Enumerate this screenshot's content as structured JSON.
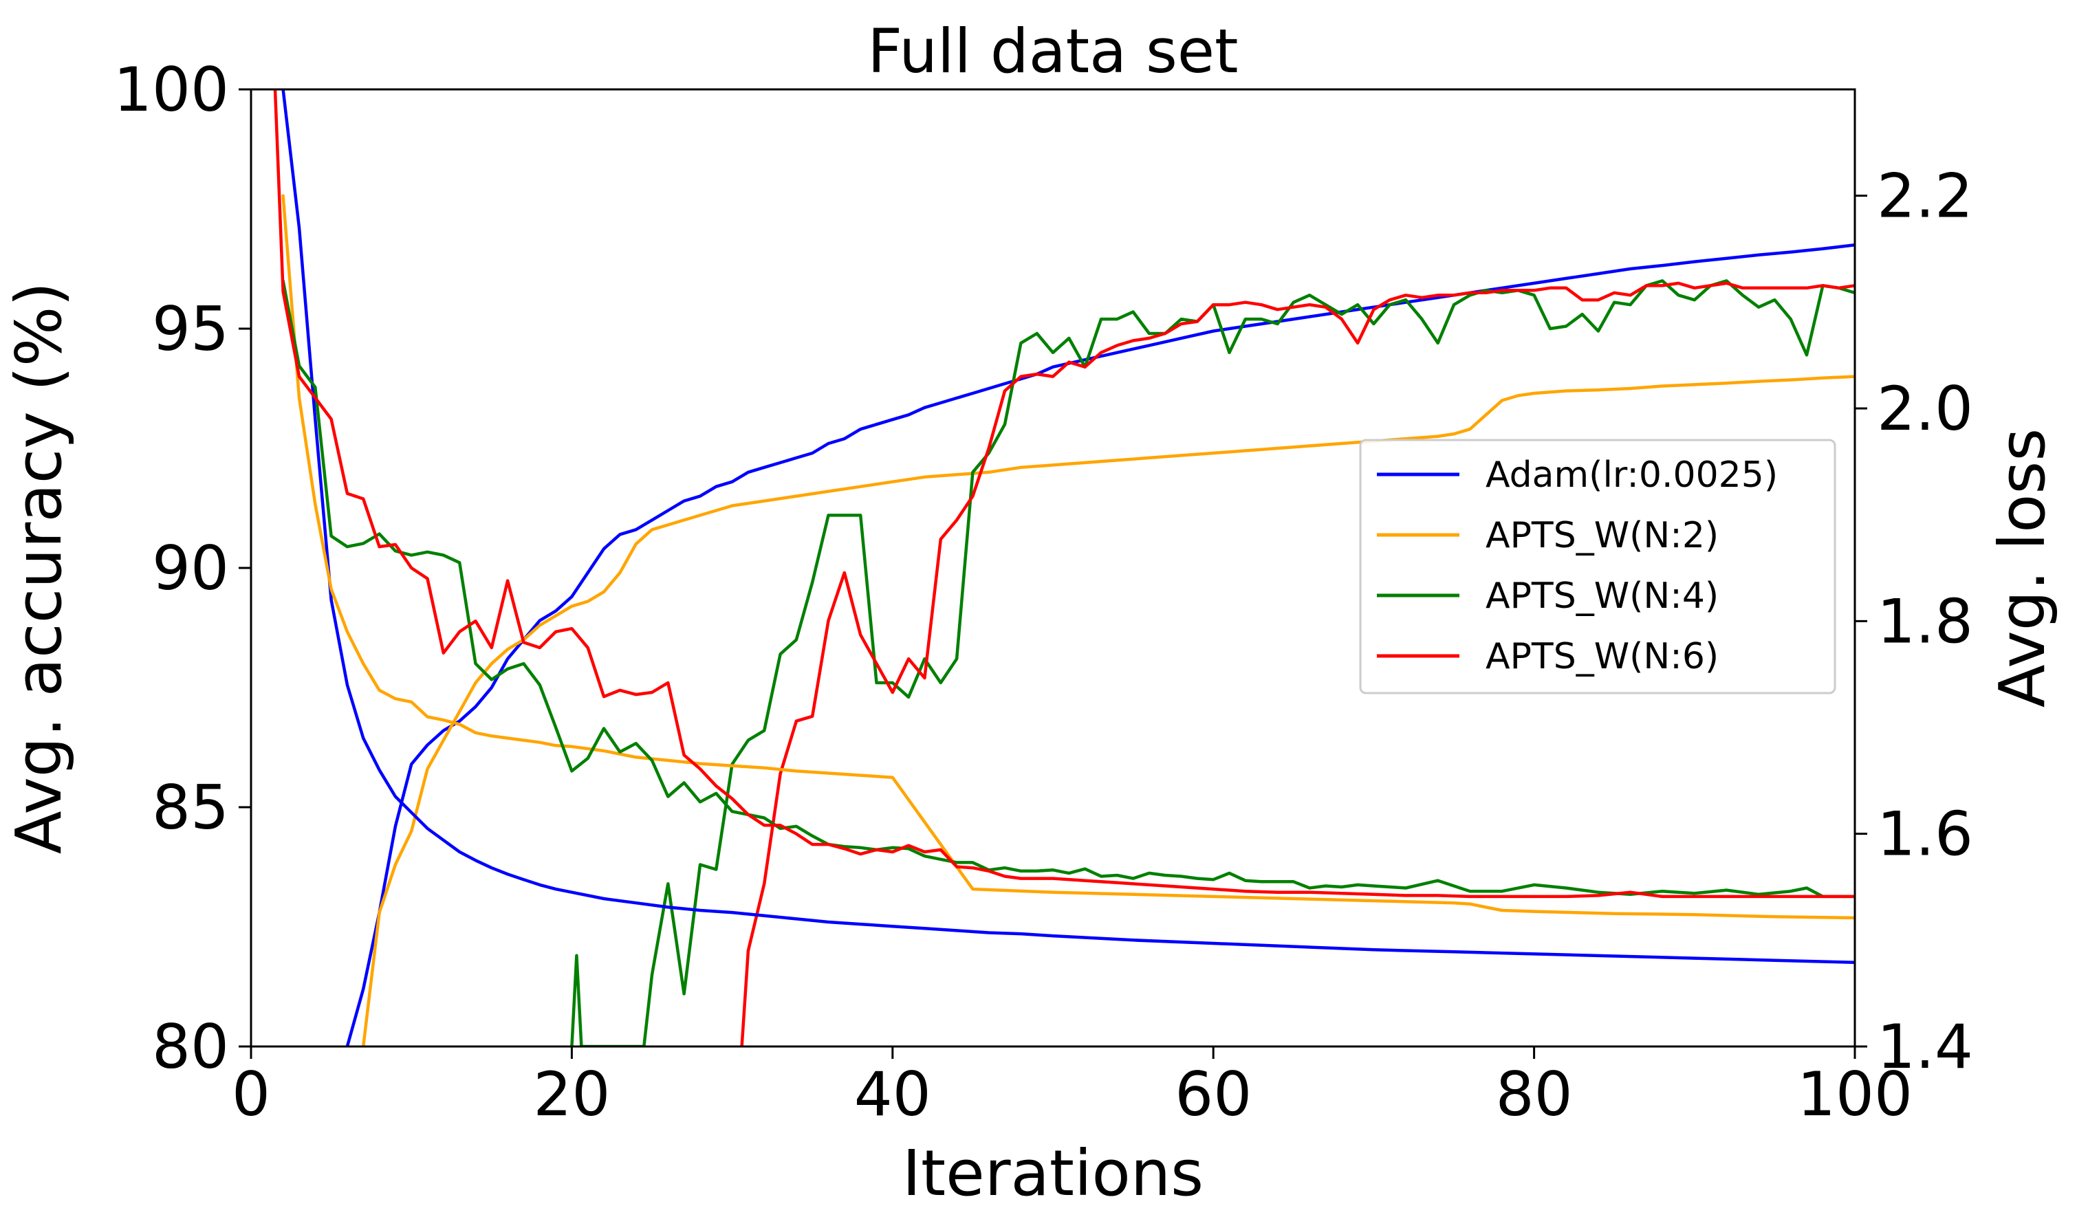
{
  "chart_data": {
    "type": "line",
    "title": "Full data set",
    "xlabel": "Iterations",
    "ylabel_left": "Avg. accuracy (%)",
    "ylabel_right": "Avg. loss",
    "xlim": [
      0,
      100
    ],
    "ylim_left": [
      80,
      100
    ],
    "ylim_right": [
      1.4,
      2.3
    ],
    "x_ticks": [
      "0",
      "20",
      "40",
      "60",
      "80",
      "100"
    ],
    "y_left_ticks": [
      "80",
      "85",
      "90",
      "95",
      "100"
    ],
    "y_right_ticks": [
      "1.4",
      "1.6",
      "1.8",
      "2.0",
      "2.2"
    ],
    "grid": false,
    "legend_position": "center-right",
    "colors": {
      "Adam(lr:0.0025)": "#0000ff",
      "APTS_W(N:2)": "#ffa500",
      "APTS_W(N:4)": "#008000",
      "APTS_W(N:6)": "#ff0000"
    },
    "series": [
      {
        "name": "Adam(lr:0.0025)",
        "axis": "left",
        "x": [
          6,
          7,
          8,
          9,
          10,
          11,
          12,
          13,
          14,
          15,
          16,
          17,
          18,
          19,
          20,
          21,
          22,
          23,
          24,
          25,
          26,
          27,
          28,
          29,
          30,
          31,
          32,
          33,
          34,
          35,
          36,
          37,
          38,
          39,
          40,
          41,
          42,
          43,
          44,
          45,
          46,
          47,
          48,
          49,
          50,
          52,
          54,
          56,
          58,
          60,
          62,
          64,
          66,
          68,
          70,
          72,
          74,
          76,
          78,
          80,
          82,
          84,
          86,
          88,
          90,
          92,
          94,
          96,
          98,
          100
        ],
        "y": [
          80.0,
          81.2,
          82.8,
          84.6,
          85.9,
          86.3,
          86.6,
          86.8,
          87.1,
          87.5,
          88.1,
          88.5,
          88.9,
          89.1,
          89.4,
          89.9,
          90.4,
          90.7,
          90.8,
          91.0,
          91.2,
          91.4,
          91.5,
          91.7,
          91.8,
          92.0,
          92.1,
          92.2,
          92.3,
          92.4,
          92.6,
          92.7,
          92.9,
          93.0,
          93.1,
          93.2,
          93.35,
          93.45,
          93.55,
          93.65,
          93.75,
          93.85,
          93.95,
          94.05,
          94.2,
          94.35,
          94.5,
          94.65,
          94.8,
          94.95,
          95.05,
          95.15,
          95.25,
          95.35,
          95.45,
          95.55,
          95.65,
          95.75,
          95.85,
          95.95,
          96.05,
          96.15,
          96.25,
          96.32,
          96.4,
          96.47,
          96.54,
          96.6,
          96.67,
          96.75
        ]
      },
      {
        "name": "APTS_W(N:2)",
        "axis": "left",
        "x": [
          7,
          8,
          9,
          10,
          11,
          12,
          13,
          14,
          15,
          16,
          17,
          18,
          19,
          20,
          21,
          22,
          23,
          24,
          25,
          26,
          27,
          28,
          29,
          30,
          32,
          34,
          36,
          38,
          40,
          42,
          44,
          46,
          48,
          50,
          52,
          54,
          56,
          58,
          60,
          62,
          64,
          66,
          68,
          70,
          72,
          74,
          75,
          76,
          77,
          78,
          79,
          80,
          82,
          84,
          86,
          88,
          90,
          92,
          94,
          96,
          98,
          100
        ],
        "y": [
          80.0,
          82.8,
          83.8,
          84.5,
          85.8,
          86.4,
          87.0,
          87.6,
          88.0,
          88.3,
          88.5,
          88.8,
          89.0,
          89.2,
          89.3,
          89.5,
          89.9,
          90.5,
          90.8,
          90.9,
          91.0,
          91.1,
          91.2,
          91.3,
          91.4,
          91.5,
          91.6,
          91.7,
          91.8,
          91.9,
          91.95,
          92.0,
          92.1,
          92.15,
          92.2,
          92.25,
          92.3,
          92.35,
          92.4,
          92.45,
          92.5,
          92.55,
          92.6,
          92.65,
          92.7,
          92.75,
          92.8,
          92.9,
          93.2,
          93.5,
          93.6,
          93.65,
          93.7,
          93.72,
          93.75,
          93.8,
          93.83,
          93.86,
          93.9,
          93.93,
          93.97,
          94.0
        ]
      },
      {
        "name": "APTS_W(N:4)",
        "axis": "left",
        "x": [
          20,
          20.3,
          20.6,
          24.5,
          25,
          26,
          27,
          28,
          29,
          30,
          31,
          32,
          33,
          34,
          35,
          36,
          37,
          38,
          39,
          40,
          41,
          42,
          43,
          44,
          45,
          46,
          47,
          48,
          49,
          50,
          51,
          52,
          53,
          54,
          55,
          56,
          57,
          58,
          59,
          60,
          61,
          62,
          63,
          64,
          65,
          66,
          67,
          68,
          69,
          70,
          71,
          72,
          73,
          74,
          75,
          76,
          77,
          78,
          79,
          80,
          81,
          82,
          83,
          84,
          85,
          86,
          87,
          88,
          89,
          90,
          91,
          92,
          93,
          94,
          95,
          96,
          97,
          98,
          99,
          100
        ],
        "y": [
          80.0,
          81.9,
          80.0,
          80.0,
          81.5,
          83.4,
          81.1,
          83.8,
          83.7,
          85.9,
          86.4,
          86.6,
          88.2,
          88.5,
          89.7,
          91.1,
          91.1,
          91.1,
          87.6,
          87.6,
          87.3,
          88.1,
          87.6,
          88.1,
          92.0,
          92.4,
          93.0,
          94.7,
          94.9,
          94.5,
          94.8,
          94.2,
          95.2,
          95.2,
          95.35,
          94.9,
          94.9,
          95.2,
          95.15,
          95.5,
          94.5,
          95.2,
          95.2,
          95.1,
          95.55,
          95.7,
          95.5,
          95.3,
          95.5,
          95.1,
          95.5,
          95.6,
          95.2,
          94.7,
          95.5,
          95.7,
          95.8,
          95.75,
          95.8,
          95.7,
          95.0,
          95.05,
          95.3,
          94.95,
          95.55,
          95.5,
          95.9,
          96.0,
          95.7,
          95.6,
          95.9,
          96.0,
          95.7,
          95.45,
          95.6,
          95.2,
          94.45,
          95.9,
          95.85,
          95.75
        ]
      },
      {
        "name": "APTS_W(N:6)",
        "axis": "left",
        "x": [
          30.6,
          31,
          32,
          33,
          34,
          35,
          36,
          37,
          38,
          39,
          40,
          41,
          42,
          43,
          44,
          45,
          46,
          47,
          48,
          49,
          50,
          51,
          52,
          53,
          54,
          55,
          56,
          57,
          58,
          59,
          60,
          61,
          62,
          63,
          64,
          65,
          66,
          67,
          68,
          69,
          70,
          71,
          72,
          73,
          74,
          75,
          76,
          77,
          78,
          79,
          80,
          81,
          82,
          83,
          84,
          85,
          86,
          87,
          88,
          89,
          90,
          91,
          92,
          93,
          94,
          95,
          96,
          97,
          98,
          99,
          100
        ],
        "y": [
          80.0,
          82.0,
          83.4,
          85.7,
          86.8,
          86.9,
          88.9,
          89.9,
          88.6,
          88.0,
          87.4,
          88.1,
          87.7,
          90.6,
          91.0,
          91.5,
          92.5,
          93.7,
          94.0,
          94.05,
          94.0,
          94.3,
          94.2,
          94.5,
          94.65,
          94.75,
          94.8,
          94.9,
          95.1,
          95.15,
          95.5,
          95.5,
          95.55,
          95.5,
          95.4,
          95.45,
          95.5,
          95.45,
          95.2,
          94.7,
          95.4,
          95.6,
          95.7,
          95.65,
          95.7,
          95.7,
          95.75,
          95.75,
          95.8,
          95.8,
          95.8,
          95.85,
          95.85,
          95.6,
          95.6,
          95.75,
          95.7,
          95.9,
          95.9,
          95.95,
          95.85,
          95.9,
          95.95,
          95.85,
          95.85,
          95.85,
          95.85,
          95.85,
          95.9,
          95.85,
          95.9
        ]
      },
      {
        "name": "Adam(lr:0.0025)",
        "axis": "right",
        "x": [
          2,
          3,
          4,
          5,
          6,
          7,
          8,
          9,
          10,
          11,
          12,
          13,
          14,
          15,
          16,
          17,
          18,
          19,
          20,
          22,
          24,
          26,
          28,
          30,
          32,
          34,
          36,
          38,
          40,
          42,
          44,
          46,
          48,
          50,
          55,
          60,
          65,
          70,
          75,
          80,
          85,
          90,
          95,
          100
        ],
        "y": [
          2.3,
          2.17,
          1.99,
          1.82,
          1.74,
          1.69,
          1.66,
          1.635,
          1.62,
          1.605,
          1.594,
          1.583,
          1.575,
          1.568,
          1.562,
          1.557,
          1.552,
          1.548,
          1.545,
          1.539,
          1.535,
          1.531,
          1.528,
          1.526,
          1.523,
          1.52,
          1.517,
          1.515,
          1.513,
          1.511,
          1.509,
          1.507,
          1.506,
          1.504,
          1.5,
          1.497,
          1.494,
          1.491,
          1.489,
          1.487,
          1.485,
          1.483,
          1.481,
          1.479
        ]
      },
      {
        "name": "APTS_W(N:2)",
        "axis": "right",
        "x": [
          2,
          3,
          4,
          5,
          6,
          7,
          8,
          9,
          10,
          11,
          12,
          13,
          14,
          15,
          16,
          17,
          18,
          19,
          20,
          22,
          24,
          26,
          28,
          30,
          32,
          34,
          36,
          38,
          40,
          45,
          50,
          55,
          60,
          65,
          70,
          75,
          76,
          77,
          78,
          80,
          85,
          90,
          95,
          100
        ],
        "y": [
          2.2,
          2.01,
          1.91,
          1.83,
          1.79,
          1.76,
          1.735,
          1.727,
          1.724,
          1.71,
          1.707,
          1.703,
          1.695,
          1.692,
          1.69,
          1.688,
          1.686,
          1.683,
          1.682,
          1.678,
          1.672,
          1.669,
          1.666,
          1.664,
          1.662,
          1.659,
          1.657,
          1.655,
          1.653,
          1.548,
          1.545,
          1.543,
          1.541,
          1.539,
          1.537,
          1.535,
          1.534,
          1.531,
          1.528,
          1.527,
          1.525,
          1.524,
          1.522,
          1.521
        ]
      },
      {
        "name": "APTS_W(N:4)",
        "axis": "right",
        "x": [
          2,
          3,
          4,
          5,
          6,
          7,
          8,
          9,
          10,
          11,
          12,
          13,
          14,
          15,
          16,
          17,
          18,
          19,
          20,
          21,
          22,
          23,
          24,
          25,
          26,
          27,
          28,
          29,
          30,
          31,
          32,
          33,
          34,
          35,
          36,
          37,
          38,
          39,
          40,
          41,
          42,
          43,
          44,
          45,
          46,
          47,
          48,
          49,
          50,
          51,
          52,
          53,
          54,
          55,
          56,
          57,
          58,
          59,
          60,
          61,
          62,
          63,
          64,
          65,
          66,
          67,
          68,
          69,
          70,
          72,
          74,
          76,
          78,
          80,
          82,
          84,
          86,
          88,
          90,
          92,
          94,
          96,
          97,
          98,
          100
        ],
        "y": [
          2.12,
          2.04,
          2.02,
          1.88,
          1.87,
          1.873,
          1.882,
          1.866,
          1.862,
          1.865,
          1.862,
          1.855,
          1.76,
          1.745,
          1.755,
          1.76,
          1.74,
          1.7,
          1.659,
          1.671,
          1.699,
          1.677,
          1.685,
          1.669,
          1.635,
          1.648,
          1.63,
          1.638,
          1.621,
          1.618,
          1.615,
          1.605,
          1.607,
          1.598,
          1.59,
          1.588,
          1.587,
          1.585,
          1.587,
          1.586,
          1.579,
          1.576,
          1.573,
          1.573,
          1.566,
          1.568,
          1.565,
          1.565,
          1.566,
          1.563,
          1.567,
          1.56,
          1.561,
          1.558,
          1.563,
          1.561,
          1.56,
          1.558,
          1.557,
          1.563,
          1.556,
          1.555,
          1.555,
          1.555,
          1.549,
          1.551,
          1.55,
          1.552,
          1.551,
          1.549,
          1.556,
          1.546,
          1.546,
          1.552,
          1.549,
          1.545,
          1.543,
          1.546,
          1.544,
          1.547,
          1.543,
          1.546,
          1.549,
          1.541,
          1.541
        ]
      },
      {
        "name": "APTS_W(N:6)",
        "axis": "right",
        "x": [
          1.5,
          2,
          3,
          4,
          5,
          6,
          7,
          8,
          9,
          10,
          11,
          12,
          13,
          14,
          15,
          16,
          17,
          18,
          19,
          20,
          21,
          22,
          23,
          24,
          25,
          26,
          27,
          28,
          29,
          30,
          31,
          32,
          33,
          34,
          35,
          36,
          37,
          38,
          39,
          40,
          41,
          42,
          43,
          44,
          45,
          46,
          47,
          48,
          50,
          52,
          54,
          56,
          58,
          60,
          62,
          64,
          66,
          68,
          70,
          72,
          74,
          76,
          78,
          80,
          82,
          84,
          86,
          88,
          90,
          92,
          94,
          96,
          98,
          100
        ],
        "y": [
          2.3,
          2.11,
          2.03,
          2.01,
          1.99,
          1.92,
          1.915,
          1.87,
          1.872,
          1.85,
          1.84,
          1.77,
          1.79,
          1.8,
          1.775,
          1.838,
          1.78,
          1.775,
          1.79,
          1.793,
          1.775,
          1.729,
          1.735,
          1.731,
          1.733,
          1.742,
          1.674,
          1.661,
          1.645,
          1.633,
          1.618,
          1.608,
          1.608,
          1.6,
          1.59,
          1.59,
          1.586,
          1.581,
          1.585,
          1.583,
          1.589,
          1.583,
          1.585,
          1.569,
          1.568,
          1.565,
          1.56,
          1.558,
          1.558,
          1.556,
          1.554,
          1.552,
          1.55,
          1.548,
          1.546,
          1.545,
          1.545,
          1.544,
          1.543,
          1.542,
          1.542,
          1.541,
          1.541,
          1.541,
          1.541,
          1.542,
          1.545,
          1.541,
          1.541,
          1.541,
          1.541,
          1.541,
          1.541,
          1.541
        ]
      }
    ]
  }
}
